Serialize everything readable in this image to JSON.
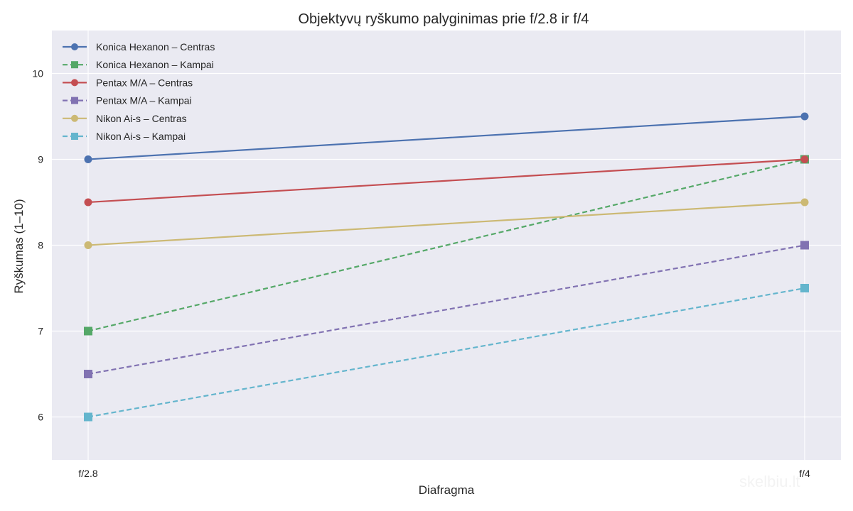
{
  "chart_data": {
    "type": "line",
    "title": "Objektyvų ryškumo palyginimas prie f/2.8 ir f/4",
    "xlabel": "Diafragma",
    "ylabel": "Ryškumas (1–10)",
    "categories": [
      "f/2.8",
      "f/4"
    ],
    "ylim": [
      5.5,
      10.5
    ],
    "yticks": [
      6,
      7,
      8,
      9,
      10
    ],
    "grid": true,
    "legend_position": "top-left",
    "background": "#eaeaf2",
    "series": [
      {
        "name": "Konica Hexanon – Centras",
        "values": [
          9.0,
          9.5
        ],
        "color": "#4c72b0",
        "dashed": false,
        "marker": "circle"
      },
      {
        "name": "Konica Hexanon – Kampai",
        "values": [
          7.0,
          9.0
        ],
        "color": "#55a868",
        "dashed": true,
        "marker": "square"
      },
      {
        "name": "Pentax M/A – Centras",
        "values": [
          8.5,
          9.0
        ],
        "color": "#c44e52",
        "dashed": false,
        "marker": "circle"
      },
      {
        "name": "Pentax M/A – Kampai",
        "values": [
          6.5,
          8.0
        ],
        "color": "#8172b2",
        "dashed": true,
        "marker": "square"
      },
      {
        "name": "Nikon Ai-s – Centras",
        "values": [
          8.0,
          8.5
        ],
        "color": "#ccb974",
        "dashed": false,
        "marker": "circle"
      },
      {
        "name": "Nikon Ai-s – Kampai",
        "values": [
          6.0,
          7.5
        ],
        "color": "#64b5cd",
        "dashed": true,
        "marker": "square"
      }
    ]
  },
  "watermark": "skelbiu.lt"
}
